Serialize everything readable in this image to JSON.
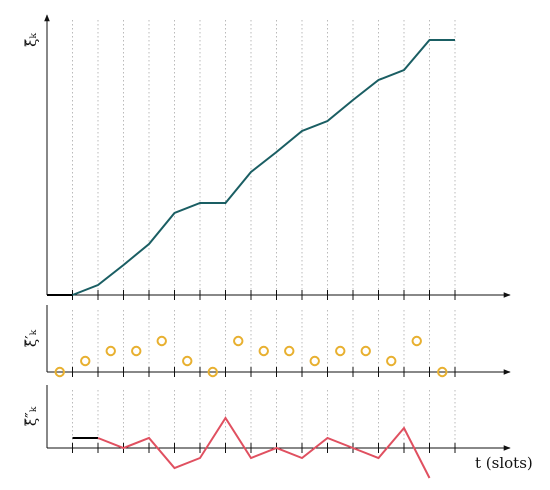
{
  "chart_data": [
    {
      "type": "line",
      "ylabel": "ξ̃ₖ",
      "xlim": [
        0,
        18
      ],
      "ylim": [
        0,
        275
      ],
      "xticks": [
        1,
        2,
        3,
        4,
        5,
        6,
        7,
        8,
        9,
        10,
        11,
        12,
        13,
        14,
        15,
        16
      ],
      "grid": true,
      "series": [
        {
          "color": "#000000",
          "x": [
            0,
            1
          ],
          "values": [
            0,
            0
          ]
        },
        {
          "color": "#1a5e63",
          "x": [
            1,
            2,
            3,
            4,
            5,
            6,
            7,
            8,
            9,
            10,
            11,
            12,
            13,
            14,
            15,
            16
          ],
          "values": [
            0,
            10,
            30,
            51,
            82,
            92,
            92,
            123,
            143,
            164,
            174,
            195,
            215,
            225,
            255,
            255
          ]
        }
      ]
    },
    {
      "type": "scatter",
      "ylabel": "ξ̃′ₖ",
      "xlim": [
        0,
        18
      ],
      "ylim": [
        0,
        64
      ],
      "xticks": [
        1,
        2,
        3,
        4,
        5,
        6,
        7,
        8,
        9,
        10,
        11,
        12,
        13,
        14,
        15,
        16
      ],
      "grid": true,
      "series": [
        {
          "color": "#e8b030",
          "x": [
            0.5,
            1.5,
            2.5,
            3.5,
            4.5,
            5.5,
            6.5,
            7.5,
            8.5,
            9.5,
            10.5,
            11.5,
            12.5,
            13.5,
            14.5,
            15.5
          ],
          "values": [
            0,
            11,
            21,
            21,
            31,
            11,
            0,
            31,
            21,
            21,
            11,
            21,
            21,
            11,
            31,
            0
          ]
        }
      ]
    },
    {
      "type": "line",
      "ylabel": "ξ̃″ₖ",
      "xlabel": "t (slots)",
      "xlim": [
        0,
        18
      ],
      "ylim": [
        -32,
        63
      ],
      "xticks": [
        1,
        2,
        3,
        4,
        5,
        6,
        7,
        8,
        9,
        10,
        11,
        12,
        13,
        14,
        15,
        16
      ],
      "grid": true,
      "series": [
        {
          "color": "#000000",
          "x": [
            1,
            2
          ],
          "values": [
            10,
            10
          ]
        },
        {
          "color": "#e05060",
          "x": [
            2,
            3,
            4,
            5,
            6,
            7,
            8,
            9,
            10,
            11,
            12,
            13,
            14,
            15
          ],
          "values": [
            10,
            0,
            10,
            -20,
            -10,
            30,
            -10,
            0,
            -10,
            10,
            0,
            -10,
            20,
            -30
          ]
        }
      ]
    }
  ]
}
